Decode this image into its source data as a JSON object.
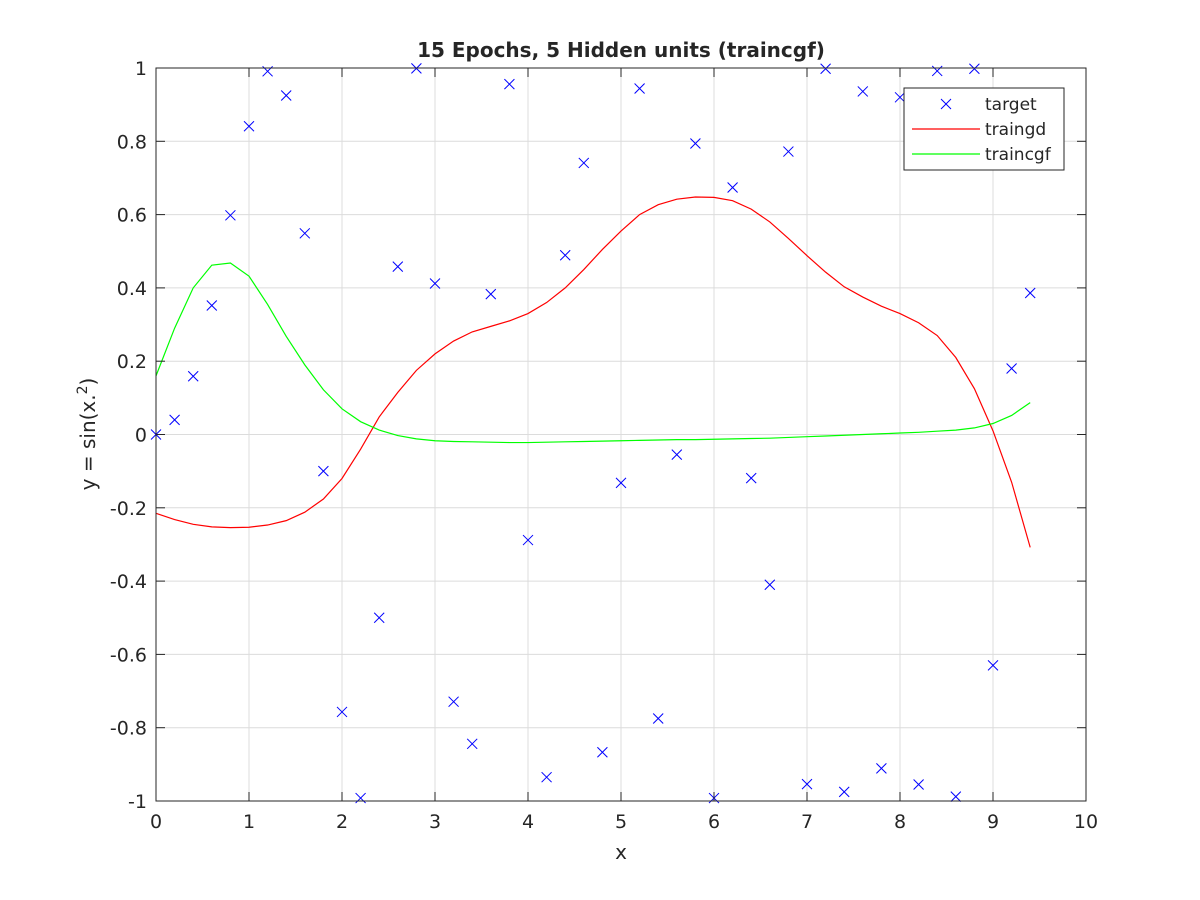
{
  "chart_data": {
    "type": "line",
    "title": "15 Epochs, 5 Hidden units (traincgf)",
    "xlabel": "x",
    "ylabel": "y = sin(x.^2)",
    "xlim": [
      0,
      10
    ],
    "ylim": [
      -1,
      1
    ],
    "xticks": [
      0,
      1,
      2,
      3,
      4,
      5,
      6,
      7,
      8,
      9,
      10
    ],
    "yticks": [
      -1,
      -0.8,
      -0.6,
      -0.4,
      -0.2,
      0,
      0.2,
      0.4,
      0.6,
      0.8,
      1
    ],
    "grid": true,
    "legend_position": "top-right",
    "series": [
      {
        "name": "target",
        "style": "markers-x",
        "color": "#0000ff",
        "x": [
          0,
          0.2,
          0.4,
          0.6,
          0.8,
          1.0,
          1.2,
          1.4,
          1.6,
          1.8,
          2.0,
          2.2,
          2.4,
          2.6,
          2.8,
          3.0,
          3.2,
          3.4,
          3.6,
          3.8,
          4.0,
          4.2,
          4.4,
          4.6,
          4.8,
          5.0,
          5.2,
          5.4,
          5.6,
          5.8,
          6.0,
          6.2,
          6.4,
          6.6,
          6.8,
          7.0,
          7.2,
          7.4,
          7.6,
          7.8,
          8.0,
          8.2,
          8.4,
          8.6,
          8.8,
          9.0,
          9.2,
          9.4
        ],
        "y": [
          0,
          0.04,
          0.159,
          0.352,
          0.598,
          0.841,
          0.991,
          0.925,
          0.549,
          -0.1,
          -0.757,
          -0.992,
          -0.5,
          0.458,
          0.999,
          0.412,
          -0.729,
          -0.844,
          0.383,
          0.956,
          -0.288,
          -0.935,
          0.489,
          0.741,
          -0.867,
          -0.132,
          0.944,
          -0.775,
          -0.055,
          0.794,
          -0.992,
          0.674,
          -0.119,
          -0.41,
          0.772,
          -0.954,
          0.998,
          -0.975,
          0.936,
          -0.911,
          0.92,
          -0.955,
          0.992,
          -0.988,
          0.998,
          -0.63,
          0.18,
          0.386
        ]
      },
      {
        "name": "traingd",
        "style": "line",
        "color": "#ff0000",
        "x": [
          0,
          0.2,
          0.4,
          0.6,
          0.8,
          1.0,
          1.2,
          1.4,
          1.6,
          1.8,
          2.0,
          2.2,
          2.4,
          2.6,
          2.8,
          3.0,
          3.2,
          3.4,
          3.6,
          3.8,
          4.0,
          4.2,
          4.4,
          4.6,
          4.8,
          5.0,
          5.2,
          5.4,
          5.6,
          5.8,
          6.0,
          6.2,
          6.4,
          6.6,
          6.8,
          7.0,
          7.2,
          7.4,
          7.6,
          7.8,
          8.0,
          8.2,
          8.4,
          8.6,
          8.8,
          9.0,
          9.2,
          9.4
        ],
        "y": [
          -0.215,
          -0.232,
          -0.245,
          -0.252,
          -0.254,
          -0.253,
          -0.247,
          -0.235,
          -0.212,
          -0.176,
          -0.12,
          -0.04,
          0.048,
          0.115,
          0.175,
          0.22,
          0.255,
          0.28,
          0.295,
          0.31,
          0.33,
          0.36,
          0.4,
          0.45,
          0.505,
          0.555,
          0.6,
          0.627,
          0.642,
          0.648,
          0.647,
          0.638,
          0.615,
          0.58,
          0.535,
          0.488,
          0.443,
          0.403,
          0.375,
          0.35,
          0.33,
          0.305,
          0.27,
          0.21,
          0.125,
          0.01,
          -0.13,
          -0.308
        ]
      },
      {
        "name": "traincgf",
        "style": "line",
        "color": "#00ff00",
        "x": [
          0,
          0.2,
          0.4,
          0.6,
          0.8,
          1.0,
          1.2,
          1.4,
          1.6,
          1.8,
          2.0,
          2.2,
          2.4,
          2.6,
          2.8,
          3.0,
          3.2,
          3.4,
          3.6,
          3.8,
          4.0,
          4.2,
          4.4,
          4.6,
          4.8,
          5.0,
          5.2,
          5.4,
          5.6,
          5.8,
          6.0,
          6.2,
          6.4,
          6.6,
          6.8,
          7.0,
          7.2,
          7.4,
          7.6,
          7.8,
          8.0,
          8.2,
          8.4,
          8.6,
          8.8,
          9.0,
          9.2,
          9.4
        ],
        "y": [
          0.16,
          0.29,
          0.4,
          0.462,
          0.468,
          0.432,
          0.355,
          0.268,
          0.19,
          0.122,
          0.07,
          0.035,
          0.012,
          -0.003,
          -0.012,
          -0.017,
          -0.019,
          -0.02,
          -0.021,
          -0.022,
          -0.022,
          -0.021,
          -0.02,
          -0.019,
          -0.018,
          -0.017,
          -0.016,
          -0.015,
          -0.014,
          -0.014,
          -0.013,
          -0.012,
          -0.011,
          -0.01,
          -0.008,
          -0.006,
          -0.004,
          -0.002,
          0.0,
          0.002,
          0.004,
          0.006,
          0.009,
          0.012,
          0.018,
          0.03,
          0.052,
          0.087
        ]
      }
    ]
  }
}
